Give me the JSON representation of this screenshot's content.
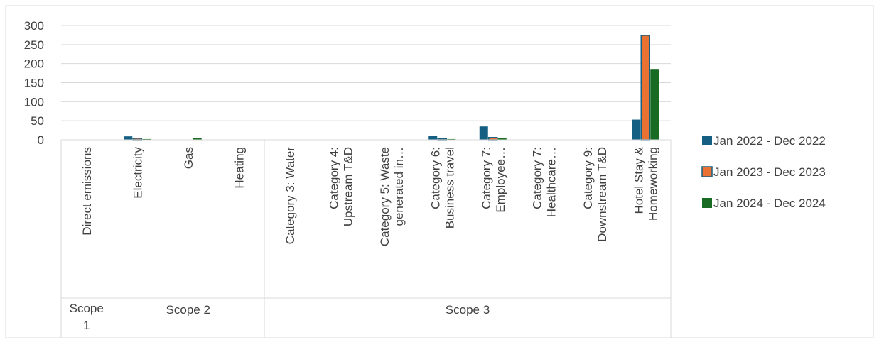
{
  "chart_data": {
    "type": "bar",
    "title": "",
    "xlabel": "",
    "ylabel": "",
    "ylim": [
      0,
      300
    ],
    "yticks": [
      0,
      50,
      100,
      150,
      200,
      250,
      300
    ],
    "grid": "horizontal",
    "legend_position": "right",
    "categories": [
      "Direct emissions",
      "Electricity",
      "Gas",
      "Heating",
      "Category 3: Water",
      "Category 4: Upstream T&D",
      "Category 5: Waste generated in…",
      "Category 6: Business travel",
      "Category 7: Employee…",
      "Category 7: Healthcare…",
      "Category 9: Downstream T&D",
      "Hotel Stay & Homeworking"
    ],
    "category_label_lines": [
      [
        "Direct emissions"
      ],
      [
        "Electricity"
      ],
      [
        "Gas"
      ],
      [
        "Heating"
      ],
      [
        "Category 3: Water"
      ],
      [
        "Category 4:",
        "Upstream T&D"
      ],
      [
        "Category 5: Waste",
        "generated in…"
      ],
      [
        "Category 6:",
        "Business travel"
      ],
      [
        "Category 7:",
        "Employee…"
      ],
      [
        "Category 7:",
        "Healthcare…"
      ],
      [
        "Category 9:",
        "Downstream T&D"
      ],
      [
        "Hotel Stay &",
        "Homeworking"
      ]
    ],
    "groups": [
      {
        "label_lines": [
          "Scope",
          "1"
        ],
        "first": 0,
        "count": 1
      },
      {
        "label_lines": [
          "Scope 2"
        ],
        "first": 1,
        "count": 3
      },
      {
        "label_lines": [
          "Scope 3"
        ],
        "first": 4,
        "count": 8
      }
    ],
    "series": [
      {
        "name": "Jan 2022 - Dec 2022",
        "color": "#156082",
        "values": [
          0,
          9,
          0,
          0,
          0,
          0,
          0,
          10,
          35,
          0,
          0,
          53
        ]
      },
      {
        "name": "Jan 2023 - Dec 2023",
        "color": "#E97132",
        "values": [
          0,
          4,
          0,
          0,
          0,
          0,
          0,
          3,
          6,
          0,
          0,
          274
        ]
      },
      {
        "name": "Jan 2024 - Dec 2024",
        "color": "#196B24",
        "values": [
          0,
          2,
          4,
          0,
          0,
          0,
          0,
          2,
          4,
          0,
          0,
          186
        ]
      }
    ]
  }
}
